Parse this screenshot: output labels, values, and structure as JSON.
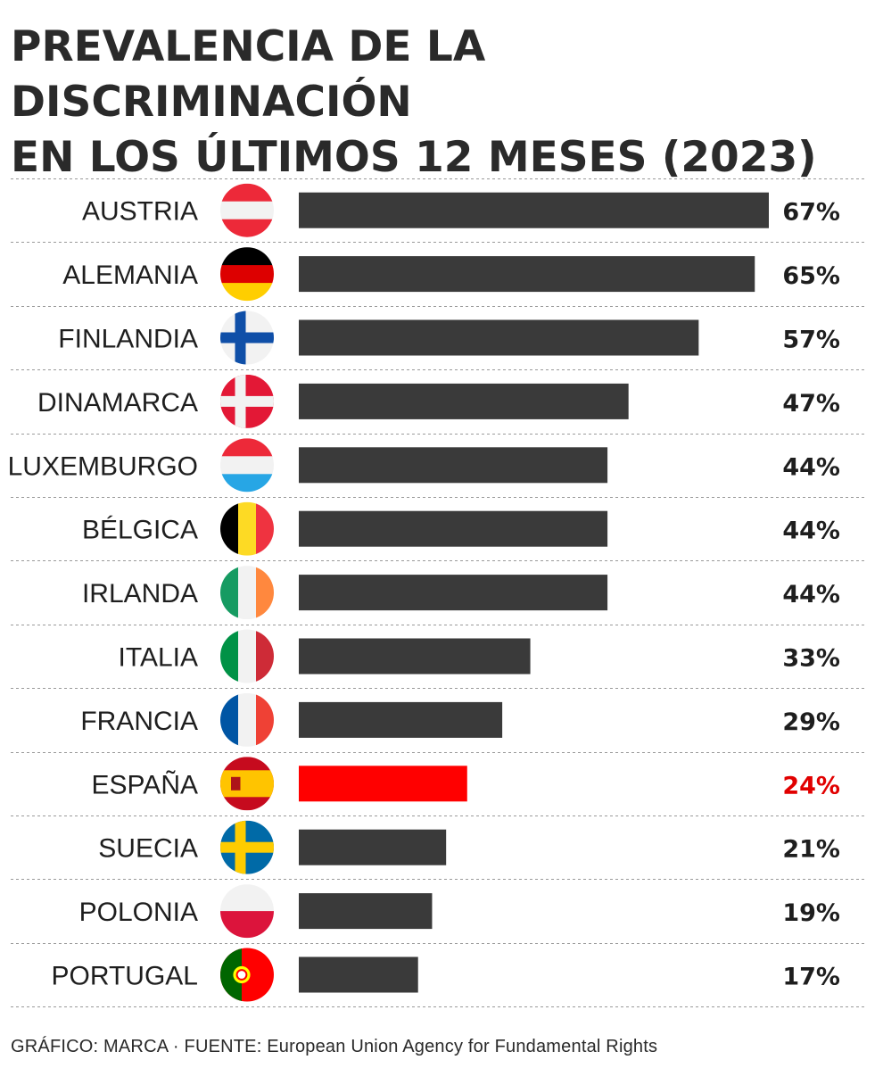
{
  "title_line1": "PREVALENCIA DE LA DISCRIMINACIÓN",
  "title_line2": "EN LOS ÚLTIMOS 12 MESES (2023)",
  "caption": "GRÁFICO: MARCA · FUENTE: European Union Agency for Fundamental Rights",
  "colors": {
    "bar": "#3a3a3a",
    "highlight": "#ff0000",
    "label_highlight": "#e10000",
    "text": "#1e1e1e",
    "divider": "#9a9a9a"
  },
  "chart_data": {
    "type": "bar",
    "orientation": "horizontal",
    "title": "PREVALENCIA DE LA DISCRIMINACIÓN EN LOS ÚLTIMOS 12 MESES (2023)",
    "xlabel": "",
    "ylabel": "",
    "xlim": [
      0,
      67
    ],
    "unit": "%",
    "grid": false,
    "highlight": "ESPAÑA",
    "categories": [
      "AUSTRIA",
      "ALEMANIA",
      "FINLANDIA",
      "DINAMARCA",
      "LUXEMBURGO",
      "BÉLGICA",
      "IRLANDA",
      "ITALIA",
      "FRANCIA",
      "ESPAÑA",
      "SUECIA",
      "POLONIA",
      "PORTUGAL"
    ],
    "values": [
      67,
      65,
      57,
      47,
      44,
      44,
      44,
      33,
      29,
      24,
      21,
      19,
      17
    ],
    "labels": [
      "67%",
      "65%",
      "57%",
      "47%",
      "44%",
      "44%",
      "44%",
      "33%",
      "29%",
      "24%",
      "21%",
      "19%",
      "17%"
    ],
    "flags": [
      "austria-flag-icon",
      "germany-flag-icon",
      "finland-flag-icon",
      "denmark-flag-icon",
      "luxembourg-flag-icon",
      "belgium-flag-icon",
      "ireland-flag-icon",
      "italy-flag-icon",
      "france-flag-icon",
      "spain-flag-icon",
      "sweden-flag-icon",
      "poland-flag-icon",
      "portugal-flag-icon"
    ]
  }
}
